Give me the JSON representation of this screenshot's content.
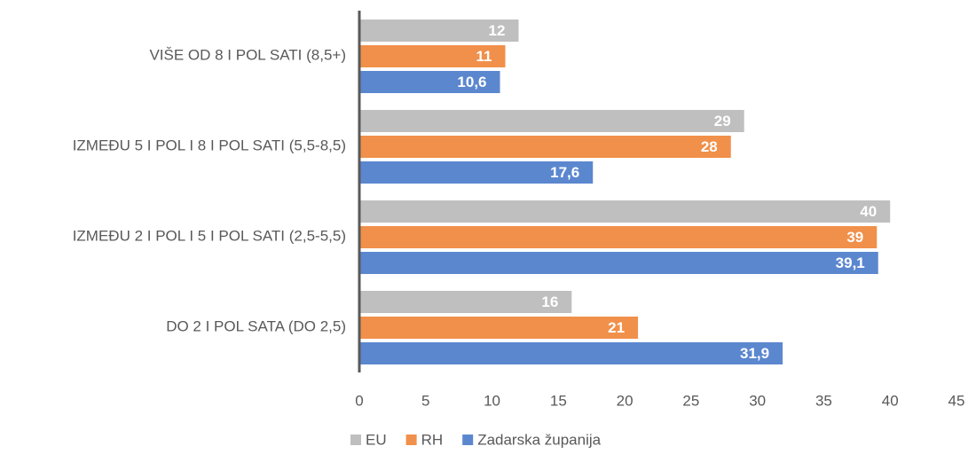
{
  "chart_data": {
    "type": "hbar",
    "categories": [
      "VIŠE OD 8 I POL SATI (8,5+)",
      "IZMEĐU 5 I POL I 8 I POL SATI (5,5-8,5)",
      "IZMEĐU 2 I POL I 5 I POL SATI (2,5-5,5)",
      "DO 2 I POL SATA (DO 2,5)"
    ],
    "series": [
      {
        "name": "EU",
        "color": "#bfbfbf",
        "values": [
          12,
          29,
          40,
          16
        ]
      },
      {
        "name": "RH",
        "color": "#f0904a",
        "values": [
          11,
          28,
          39,
          21
        ]
      },
      {
        "name": "Zadarska županija",
        "color": "#5b87cf",
        "values": [
          10.6,
          17.6,
          39.1,
          31.9
        ],
        "value_labels": [
          "10,6",
          "17,6",
          "39,1",
          "31,9"
        ]
      }
    ],
    "xlim": [
      0,
      45
    ],
    "xticks": [
      0,
      5,
      10,
      15,
      20,
      25,
      30,
      35,
      40,
      45
    ],
    "grid": false,
    "legend": "bottom"
  }
}
